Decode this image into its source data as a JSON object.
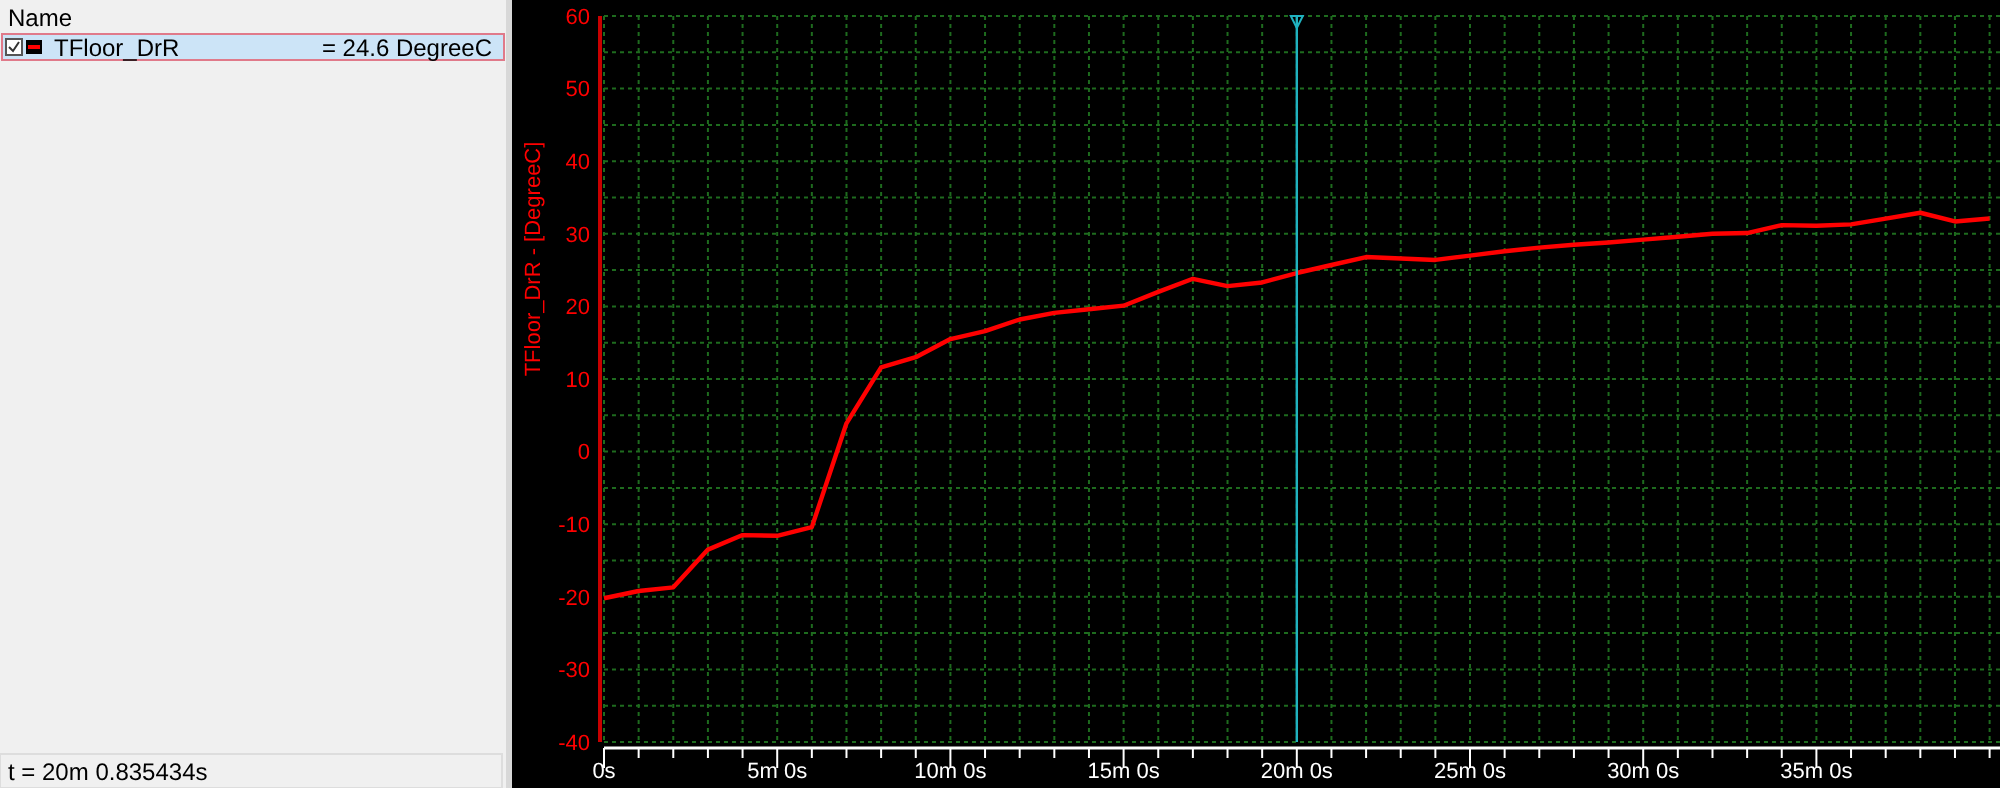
{
  "chart_data": {
    "type": "line",
    "ylabel": "TFloor_DrR - [DegreeC]",
    "legend_title": "Name",
    "legend": "left",
    "grid": true,
    "marker": "none",
    "line_style": "solid",
    "categories": [
      "0s",
      null,
      null,
      null,
      null,
      "5m 0s",
      null,
      null,
      null,
      null,
      "10m 0s",
      null,
      null,
      null,
      null,
      "15m 0s",
      null,
      null,
      null,
      null,
      "20m 0s",
      null,
      null,
      null,
      null,
      "25m 0s",
      null,
      null,
      null,
      null,
      "30m 0s",
      null,
      null,
      null,
      null,
      "35m 0s",
      null,
      null,
      null,
      null,
      null
    ],
    "ylim": [
      -40,
      60
    ],
    "yticks": [
      -40,
      {
        "value": -35,
        "label": null
      },
      -30,
      {
        "value": -25,
        "label": null
      },
      -20,
      {
        "value": -15,
        "label": null
      },
      -10,
      {
        "value": -5,
        "label": null
      },
      0,
      {
        "value": 5,
        "label": null
      },
      10,
      {
        "value": 15,
        "label": null
      },
      20,
      {
        "value": 25,
        "label": null
      },
      30,
      {
        "value": 35,
        "label": null
      },
      40,
      {
        "value": 45,
        "label": null
      },
      50,
      {
        "value": 55,
        "label": null
      },
      60
    ],
    "ref_lines": [
      {
        "axis": "x",
        "value": "20m 0s",
        "color": "#20b2c0"
      }
    ],
    "annotations": [
      "= 24.6 DegreeC",
      "t = 20m 0.835434s"
    ],
    "series": [
      {
        "name": "TFloor_DrR",
        "color": "#ff0000",
        "values": [
          -20.2,
          -19.2,
          -18.7,
          -13.5,
          -11.5,
          -11.6,
          -10.4,
          3.9,
          11.6,
          13.0,
          15.5,
          16.6,
          18.2,
          19.1,
          19.6,
          20.1,
          22.0,
          23.8,
          22.8,
          23.3,
          24.6,
          25.7,
          26.8,
          26.6,
          26.4,
          27.0,
          27.6,
          28.1,
          28.5,
          28.8,
          29.2,
          29.6,
          30.0,
          30.1,
          31.2,
          31.1,
          31.3,
          32.1,
          32.9,
          31.7,
          32.1
        ]
      }
    ]
  }
}
